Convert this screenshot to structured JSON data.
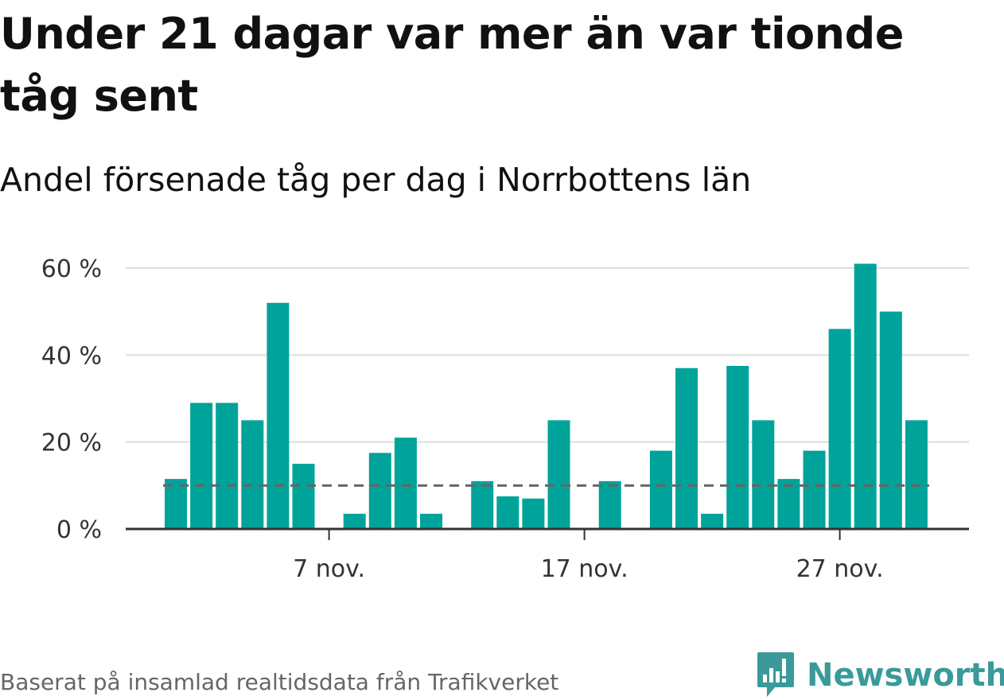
{
  "title": "Under 21 dagar var mer än var tionde tåg sent",
  "subtitle": "Andel försenade tåg per dag i Norrbottens län",
  "source": "Baserat på insamlad realtidsdata från Trafikverket",
  "brand": {
    "name": "Newsworthy",
    "color": "#3a9a9a"
  },
  "chart_data": {
    "type": "bar",
    "x": [
      "2023-11-01",
      "2023-11-02",
      "2023-11-03",
      "2023-11-04",
      "2023-11-05",
      "2023-11-06",
      "2023-11-07",
      "2023-11-08",
      "2023-11-09",
      "2023-11-10",
      "2023-11-11",
      "2023-11-12",
      "2023-11-13",
      "2023-11-14",
      "2023-11-15",
      "2023-11-16",
      "2023-11-17",
      "2023-11-18",
      "2023-11-19",
      "2023-11-20",
      "2023-11-21",
      "2023-11-22",
      "2023-11-23",
      "2023-11-24",
      "2023-11-25",
      "2023-11-26",
      "2023-11-27",
      "2023-11-28",
      "2023-11-29",
      "2023-11-30"
    ],
    "values": [
      11.5,
      29,
      29,
      25,
      52,
      15,
      0,
      3.5,
      17.5,
      21,
      3.5,
      0,
      11,
      7.5,
      7,
      25,
      0,
      11,
      0,
      18,
      37,
      3.5,
      37.5,
      25,
      11.5,
      18,
      46,
      61,
      50,
      25
    ],
    "reference_line": 10,
    "ylim": [
      0,
      62
    ],
    "yticks": [
      0,
      20,
      40,
      60
    ],
    "ytick_labels": [
      "0 %",
      "20 %",
      "40 %",
      "60 %"
    ],
    "xticks": [
      "2023-11-07",
      "2023-11-17",
      "2023-11-27"
    ],
    "xtick_labels": [
      "7 nov.",
      "17 nov.",
      "27 nov."
    ],
    "bar_color": "#00a39a",
    "grid": true
  }
}
